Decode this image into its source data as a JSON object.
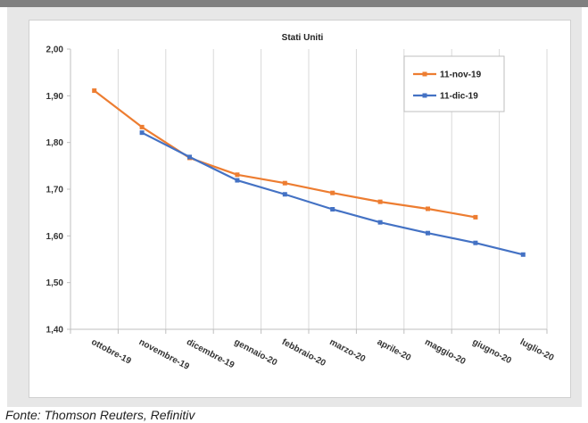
{
  "source_note": "Fonte: Thomson Reuters, Refinitiv",
  "chart_data": {
    "type": "line",
    "title": "Stati Uniti",
    "xlabel": "",
    "ylabel": "",
    "categories": [
      "ottobre-19",
      "novembre-19",
      "dicembre-19",
      "gennaio-20",
      "febbraio-20",
      "marzo-20",
      "aprile-20",
      "maggio-20",
      "giugno-20",
      "luglio-20"
    ],
    "y_ticks": [
      "1,40",
      "1,50",
      "1,60",
      "1,70",
      "1,80",
      "1,90",
      "2,00"
    ],
    "ylim": [
      1.4,
      2.0
    ],
    "grid": "vertical",
    "legend": "top-right",
    "series": [
      {
        "name": "11-nov-19",
        "color": "#ed7d31",
        "values": [
          1.911,
          1.833,
          1.767,
          1.731,
          1.713,
          1.692,
          1.673,
          1.658,
          1.64,
          null
        ]
      },
      {
        "name": "11-dic-19",
        "color": "#4472c4",
        "values": [
          null,
          1.821,
          1.769,
          1.719,
          1.689,
          1.657,
          1.629,
          1.606,
          1.585,
          1.56
        ]
      }
    ]
  }
}
